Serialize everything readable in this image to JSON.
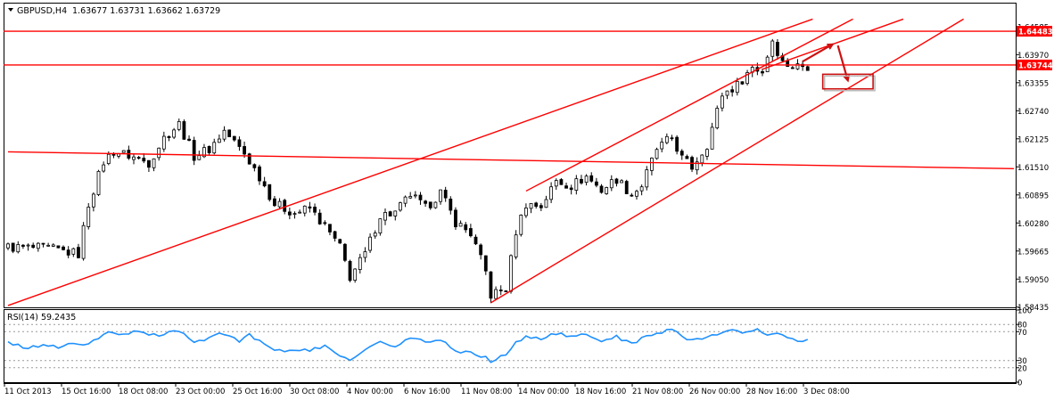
{
  "header": {
    "symbol": "GBPUSD,H4",
    "ohlc": "1.63677 1.63731 1.63662 1.63729"
  },
  "colors": {
    "background": "#ffffff",
    "candle": "#000000",
    "trend_line": "#ff0000",
    "rsi_line": "#1e90ff",
    "price_tag_bg": "#ff0000",
    "price_tag_fg": "#ffffff",
    "grid_dotted": "#9a9a9a"
  },
  "chart_data": [
    {
      "type": "candlestick",
      "title": "GBPUSD,H4",
      "ylim": [
        1.5843,
        1.6509
      ],
      "y_ticks": [
        "1.64585",
        "1.63970",
        "1.63355",
        "1.62740",
        "1.62125",
        "1.61510",
        "1.60895",
        "1.60280",
        "1.59665",
        "1.59050",
        "1.58435"
      ],
      "x_ticks": [
        "11 Oct 2013",
        "15 Oct 16:00",
        "18 Oct 08:00",
        "23 Oct 00:00",
        "25 Oct 16:00",
        "30 Oct 08:00",
        "4 Nov 00:00",
        "6 Nov 16:00",
        "11 Nov 08:00",
        "14 Nov 00:00",
        "18 Nov 16:00",
        "21 Nov 08:00",
        "26 Nov 00:00",
        "28 Nov 16:00",
        "3 Dec 08:00"
      ],
      "bars_count": 160,
      "close_path": [
        [
          0,
          1.5975
        ],
        [
          8,
          1.5972
        ],
        [
          14,
          1.596
        ],
        [
          16,
          1.607
        ],
        [
          19,
          1.6162
        ],
        [
          21,
          1.6185
        ],
        [
          24,
          1.6176
        ],
        [
          28,
          1.616
        ],
        [
          31,
          1.6215
        ],
        [
          34,
          1.6245
        ],
        [
          37,
          1.6175
        ],
        [
          40,
          1.619
        ],
        [
          43,
          1.623
        ],
        [
          47,
          1.618
        ],
        [
          50,
          1.613
        ],
        [
          53,
          1.607
        ],
        [
          57,
          1.605
        ],
        [
          60,
          1.606
        ],
        [
          63,
          1.602
        ],
        [
          66,
          1.5975
        ],
        [
          68,
          1.591
        ],
        [
          71,
          1.596
        ],
        [
          74,
          1.6045
        ],
        [
          77,
          1.605
        ],
        [
          80,
          1.609
        ],
        [
          83,
          1.606
        ],
        [
          86,
          1.6095
        ],
        [
          89,
          1.603
        ],
        [
          92,
          1.6005
        ],
        [
          95,
          1.592
        ],
        [
          96,
          1.587
        ],
        [
          99,
          1.5885
        ],
        [
          101,
          1.601
        ],
        [
          103,
          1.607
        ],
        [
          106,
          1.6065
        ],
        [
          109,
          1.612
        ],
        [
          112,
          1.611
        ],
        [
          115,
          1.613
        ],
        [
          118,
          1.61
        ],
        [
          121,
          1.6125
        ],
        [
          124,
          1.609
        ],
        [
          126,
          1.611
        ],
        [
          129,
          1.619
        ],
        [
          132,
          1.6215
        ],
        [
          134,
          1.617
        ],
        [
          136,
          1.615
        ],
        [
          139,
          1.62
        ],
        [
          142,
          1.631
        ],
        [
          145,
          1.633
        ],
        [
          148,
          1.637
        ],
        [
          150,
          1.636
        ],
        [
          152,
          1.643
        ],
        [
          154,
          1.638
        ],
        [
          156,
          1.6372
        ],
        [
          159,
          1.6373
        ]
      ],
      "horizontal_levels": [
        {
          "price": 1.64483,
          "label": "1.64483"
        },
        {
          "price": 1.63744,
          "label": "1.63744"
        }
      ],
      "trend_lines": [
        {
          "from": [
            0,
            1.5847
          ],
          "to": [
            160,
            1.6475
          ]
        },
        {
          "from": [
            0,
            1.6184
          ],
          "to": [
            200,
            1.6147
          ]
        },
        {
          "from": [
            96,
            1.5853
          ],
          "to": [
            190,
            1.6475
          ]
        },
        {
          "from": [
            103,
            1.6098
          ],
          "to": [
            168,
            1.6475
          ]
        },
        {
          "from": [
            150,
            1.6365
          ],
          "to": [
            178,
            1.6475
          ]
        }
      ],
      "annotations": [
        {
          "type": "arrow",
          "from": [
            158,
            1.6382
          ],
          "to": [
            164,
            1.642
          ]
        },
        {
          "type": "arrow",
          "from": [
            165,
            1.6417
          ],
          "to": [
            167,
            1.634
          ]
        },
        {
          "type": "box",
          "from": [
            162,
            1.6354
          ],
          "to": [
            172,
            1.6322
          ]
        }
      ]
    },
    {
      "type": "line",
      "title": "RSI(14) 59.2435",
      "ylim": [
        0,
        100
      ],
      "y_ticks": [
        "100",
        "80",
        "70",
        "30",
        "20",
        "0"
      ],
      "levels": [
        80,
        70,
        30,
        20
      ],
      "series": [
        {
          "name": "RSI(14)",
          "points": [
            [
              0,
              54
            ],
            [
              4,
              47
            ],
            [
              7,
              52
            ],
            [
              10,
              48
            ],
            [
              13,
              55
            ],
            [
              16,
              52
            ],
            [
              18,
              60
            ],
            [
              20,
              70
            ],
            [
              23,
              66
            ],
            [
              26,
              70
            ],
            [
              30,
              64
            ],
            [
              33,
              70
            ],
            [
              35,
              69
            ],
            [
              37,
              56
            ],
            [
              40,
              62
            ],
            [
              43,
              68
            ],
            [
              46,
              58
            ],
            [
              48,
              65
            ],
            [
              51,
              52
            ],
            [
              54,
              43
            ],
            [
              57,
              46
            ],
            [
              60,
              44
            ],
            [
              63,
              49
            ],
            [
              66,
              37
            ],
            [
              68,
              32
            ],
            [
              71,
              44
            ],
            [
              74,
              56
            ],
            [
              77,
              48
            ],
            [
              80,
              62
            ],
            [
              83,
              55
            ],
            [
              86,
              59
            ],
            [
              89,
              44
            ],
            [
              92,
              40
            ],
            [
              95,
              35
            ],
            [
              96,
              28
            ],
            [
              99,
              39
            ],
            [
              101,
              54
            ],
            [
              103,
              63
            ],
            [
              106,
              61
            ],
            [
              109,
              68
            ],
            [
              112,
              62
            ],
            [
              115,
              66
            ],
            [
              118,
              57
            ],
            [
              121,
              64
            ],
            [
              124,
              52
            ],
            [
              127,
              64
            ],
            [
              130,
              70
            ],
            [
              132,
              73
            ],
            [
              135,
              61
            ],
            [
              138,
              60
            ],
            [
              141,
              66
            ],
            [
              144,
              72
            ],
            [
              146,
              69
            ],
            [
              149,
              72
            ],
            [
              151,
              67
            ],
            [
              153,
              70
            ],
            [
              155,
              60
            ],
            [
              157,
              58
            ],
            [
              159,
              59.24
            ]
          ]
        }
      ]
    }
  ]
}
